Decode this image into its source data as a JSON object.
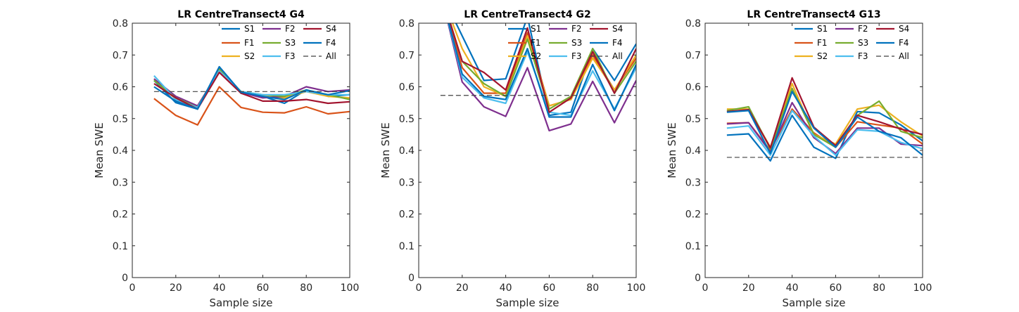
{
  "colors": {
    "S1": "#0072BD",
    "F1": "#D95319",
    "S2": "#EDB120",
    "F2": "#7E2F8E",
    "S3": "#77AC30",
    "F3": "#4DBEEE",
    "S4": "#A2142F",
    "F4": "#0072BD",
    "All": "#404040"
  },
  "chart_data": [
    {
      "type": "line",
      "title": "LR CentreTransect4 G4",
      "xlabel": "Sample size",
      "ylabel": "Mean SWE",
      "xlim": [
        0,
        100
      ],
      "ylim": [
        0,
        0.8
      ],
      "xticks": [
        "0",
        "20",
        "40",
        "60",
        "80",
        "100"
      ],
      "yticks": [
        "0",
        "0.1",
        "0.2",
        "0.3",
        "0.4",
        "0.5",
        "0.6",
        "0.7",
        "0.8"
      ],
      "legend": [
        "S1",
        "F1",
        "S2",
        "F2",
        "S3",
        "F3",
        "S4",
        "F4",
        "All"
      ],
      "legend_position": "top-right",
      "x": [
        10,
        20,
        30,
        40,
        50,
        60,
        70,
        80,
        90,
        100
      ],
      "series": [
        {
          "name": "S1",
          "values": [
            0.62,
            0.55,
            0.53,
            0.66,
            0.58,
            0.57,
            0.548,
            0.59,
            0.57,
            0.575
          ]
        },
        {
          "name": "F1",
          "values": [
            0.563,
            0.51,
            0.48,
            0.6,
            0.535,
            0.52,
            0.518,
            0.537,
            0.515,
            0.522
          ]
        },
        {
          "name": "S2",
          "values": [
            0.625,
            0.56,
            0.535,
            0.655,
            0.585,
            0.57,
            0.565,
            0.585,
            0.57,
            0.565
          ]
        },
        {
          "name": "F2",
          "values": [
            0.625,
            0.57,
            0.54,
            0.65,
            0.582,
            0.565,
            0.57,
            0.6,
            0.585,
            0.59
          ]
        },
        {
          "name": "S3",
          "values": [
            0.62,
            0.565,
            0.535,
            0.655,
            0.585,
            0.575,
            0.57,
            0.59,
            0.575,
            0.56
          ]
        },
        {
          "name": "F3",
          "values": [
            0.635,
            0.56,
            0.535,
            0.65,
            0.585,
            0.575,
            0.575,
            0.585,
            0.575,
            0.575
          ]
        },
        {
          "name": "S4",
          "values": [
            0.61,
            0.565,
            0.53,
            0.645,
            0.58,
            0.555,
            0.555,
            0.56,
            0.548,
            0.553
          ]
        },
        {
          "name": "F4",
          "values": [
            0.6,
            0.555,
            0.53,
            0.663,
            0.583,
            0.57,
            0.56,
            0.59,
            0.575,
            0.588
          ]
        }
      ],
      "reference": {
        "name": "All",
        "value": 0.585
      }
    },
    {
      "type": "line",
      "title": "LR CentreTransect4 G2",
      "xlabel": "Sample size",
      "ylabel": "Mean SWE",
      "xlim": [
        0,
        100
      ],
      "ylim": [
        0,
        0.8
      ],
      "xticks": [
        "0",
        "20",
        "40",
        "60",
        "80",
        "100"
      ],
      "yticks": [
        "0",
        "0.1",
        "0.2",
        "0.3",
        "0.4",
        "0.5",
        "0.6",
        "0.7",
        "0.8"
      ],
      "legend": [
        "S1",
        "F1",
        "S2",
        "F2",
        "S3",
        "F3",
        "S4",
        "F4",
        "All"
      ],
      "legend_position": "top-right",
      "x": [
        10,
        20,
        30,
        40,
        50,
        60,
        70,
        80,
        90,
        100
      ],
      "series": [
        {
          "name": "S1",
          "values": [
            0.9,
            0.76,
            0.62,
            0.625,
            0.82,
            0.51,
            0.52,
            0.72,
            0.62,
            0.735
          ]
        },
        {
          "name": "F1",
          "values": [
            0.9,
            0.66,
            0.58,
            0.58,
            0.77,
            0.54,
            0.56,
            0.7,
            0.59,
            0.69
          ]
        },
        {
          "name": "S2",
          "values": [
            0.9,
            0.72,
            0.6,
            0.57,
            0.76,
            0.54,
            0.56,
            0.69,
            0.59,
            0.7
          ]
        },
        {
          "name": "F2",
          "values": [
            0.9,
            0.615,
            0.537,
            0.507,
            0.66,
            0.462,
            0.483,
            0.617,
            0.487,
            0.62
          ]
        },
        {
          "name": "S3",
          "values": [
            0.9,
            0.68,
            0.61,
            0.57,
            0.75,
            0.53,
            0.57,
            0.72,
            0.58,
            0.68
          ]
        },
        {
          "name": "F3",
          "values": [
            0.9,
            0.63,
            0.565,
            0.548,
            0.71,
            0.52,
            0.51,
            0.65,
            0.53,
            0.66
          ]
        },
        {
          "name": "S4",
          "values": [
            0.9,
            0.68,
            0.645,
            0.59,
            0.785,
            0.52,
            0.565,
            0.71,
            0.58,
            0.72
          ]
        },
        {
          "name": "F4",
          "values": [
            0.9,
            0.64,
            0.57,
            0.56,
            0.72,
            0.505,
            0.505,
            0.67,
            0.525,
            0.67
          ]
        }
      ],
      "reference": {
        "name": "All",
        "value": 0.573
      }
    },
    {
      "type": "line",
      "title": "LR CentreTransect4 G13",
      "xlabel": "Sample size",
      "ylabel": "Mean SWE",
      "xlim": [
        0,
        100
      ],
      "ylim": [
        0,
        0.8
      ],
      "xticks": [
        "0",
        "20",
        "40",
        "60",
        "80",
        "100"
      ],
      "yticks": [
        "0",
        "0.1",
        "0.2",
        "0.3",
        "0.4",
        "0.5",
        "0.6",
        "0.7",
        "0.8"
      ],
      "legend": [
        "S1",
        "F1",
        "S2",
        "F2",
        "S3",
        "F3",
        "S4",
        "F4",
        "All"
      ],
      "legend_position": "top-right",
      "x": [
        10,
        20,
        30,
        40,
        50,
        60,
        70,
        80,
        90,
        100
      ],
      "series": [
        {
          "name": "S1",
          "values": [
            0.448,
            0.452,
            0.367,
            0.51,
            0.41,
            0.375,
            0.522,
            0.518,
            0.48,
            0.43
          ]
        },
        {
          "name": "F1",
          "values": [
            0.485,
            0.487,
            0.4,
            0.53,
            0.455,
            0.41,
            0.49,
            0.48,
            0.47,
            0.42
          ]
        },
        {
          "name": "S2",
          "values": [
            0.53,
            0.53,
            0.41,
            0.61,
            0.45,
            0.42,
            0.53,
            0.542,
            0.49,
            0.445
          ]
        },
        {
          "name": "F2",
          "values": [
            0.483,
            0.487,
            0.395,
            0.55,
            0.44,
            0.39,
            0.47,
            0.47,
            0.42,
            0.415
          ]
        },
        {
          "name": "S3",
          "values": [
            0.525,
            0.537,
            0.405,
            0.595,
            0.45,
            0.41,
            0.51,
            0.555,
            0.46,
            0.44
          ]
        },
        {
          "name": "F3",
          "values": [
            0.47,
            0.477,
            0.385,
            0.525,
            0.445,
            0.385,
            0.465,
            0.46,
            0.425,
            0.405
          ]
        },
        {
          "name": "S4",
          "values": [
            0.522,
            0.528,
            0.408,
            0.628,
            0.473,
            0.415,
            0.51,
            0.49,
            0.467,
            0.45
          ]
        },
        {
          "name": "F4",
          "values": [
            0.52,
            0.525,
            0.39,
            0.585,
            0.47,
            0.41,
            0.505,
            0.46,
            0.44,
            0.385
          ]
        }
      ],
      "reference": {
        "name": "All",
        "value": 0.378
      }
    }
  ]
}
